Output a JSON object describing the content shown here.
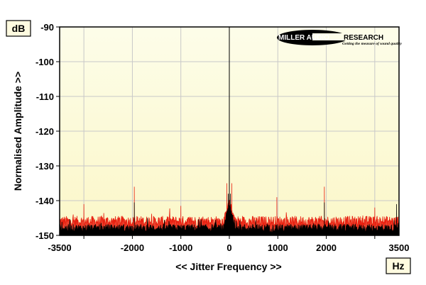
{
  "chart_data": {
    "type": "line",
    "ylabel": "Normalised Amplitude >>",
    "xlabel": "<< Jitter Frequency >>",
    "y_unit": "dB",
    "x_unit": "Hz",
    "xlim": [
      -3500,
      3500
    ],
    "ylim": [
      -150,
      -90
    ],
    "x_ticks": [
      -3500,
      -2000,
      -1000,
      0,
      1000,
      2000,
      3500
    ],
    "x_tick_labels": [
      "-3500",
      "-2000",
      "-1000",
      "0",
      "1000",
      "2000",
      "3500"
    ],
    "x_gridlines": [
      -3000,
      -2000,
      -1000,
      0,
      1000,
      2000,
      3000
    ],
    "y_ticks": [
      -90,
      -100,
      -110,
      -120,
      -130,
      -140,
      -150
    ],
    "y_tick_labels": [
      "-90",
      "-100",
      "-110",
      "-120",
      "-130",
      "-140",
      "-150"
    ],
    "grid": true,
    "series": [
      {
        "color": "#e82010",
        "noise_floor": -146,
        "peaks": [
          {
            "x": -3500,
            "y": -143
          },
          {
            "x": -3000,
            "y": -141
          },
          {
            "x": -1960,
            "y": -136
          },
          {
            "x": -1000,
            "y": -141.5
          },
          {
            "x": -50,
            "y": -135
          },
          {
            "x": 0,
            "y": -136
          },
          {
            "x": 50,
            "y": -135
          },
          {
            "x": 980,
            "y": -139
          },
          {
            "x": 1960,
            "y": -136
          },
          {
            "x": 3000,
            "y": -142
          },
          {
            "x": 3500,
            "y": -136
          }
        ]
      },
      {
        "color": "#000000",
        "noise_floor": -148,
        "peaks": [
          {
            "x": -1960,
            "y": -140.5
          },
          {
            "x": -20,
            "y": -138
          },
          {
            "x": 0,
            "y": -139
          },
          {
            "x": 20,
            "y": -138
          },
          {
            "x": 1960,
            "y": -140.5
          },
          {
            "x": 3450,
            "y": -141
          }
        ]
      }
    ]
  },
  "logo": {
    "name": "MILLER AUDIO RESEARCH",
    "tagline": "Getting the measure of sound quality"
  },
  "colors": {
    "plot_background_top": "#fdfde9",
    "plot_background_bottom": "#fbf7c8",
    "grid": "#c8c8c8"
  }
}
